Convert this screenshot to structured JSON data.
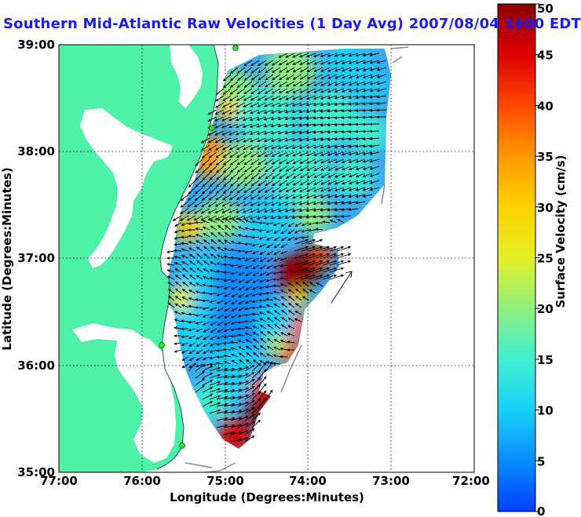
{
  "title": "Southern Mid-Atlantic Raw Velocities (1 Day Avg) 2007/08/04 1600 EDT",
  "x_axis": {
    "label": "Longitude (Degrees:Minutes)",
    "ticks": [
      "77:00",
      "76:00",
      "75:00",
      "74:00",
      "73:00",
      "72:00"
    ]
  },
  "y_axis": {
    "label": "Latitude (Degrees:Minutes)",
    "ticks": [
      "39:00",
      "38:00",
      "37:00",
      "36:00",
      "35:00"
    ]
  },
  "colorbar": {
    "label": "Surface Velocity (cm/s)",
    "ticks": [
      "50",
      "45",
      "40",
      "35",
      "30",
      "25",
      "20",
      "15",
      "10",
      "5",
      "0"
    ],
    "min": 0,
    "max": 50,
    "colors": [
      "#0040ff",
      "#0a8cff",
      "#19d0f8",
      "#40f0d0",
      "#8ff080",
      "#e4f028",
      "#ffd200",
      "#ff9a00",
      "#ff4800",
      "#dd0000",
      "#8a0000"
    ]
  },
  "colors": {
    "land": "#4ff0a8",
    "water": "#ffffff",
    "station": "#33dd33",
    "arrow": "#000000"
  },
  "chart_data": {
    "type": "map",
    "extent_longitude": [
      "77:00",
      "72:00"
    ],
    "extent_latitude": [
      "35:00",
      "39:00"
    ],
    "grid": true,
    "colorbar_position": "right",
    "velocity_range_cm_s": [
      0,
      50
    ],
    "high_velocity_regions": [
      {
        "area": "east of 74:00, near 36:50",
        "speed_cm_s": 50
      },
      {
        "area": "near 74:40, 35:20",
        "speed_cm_s": 50
      },
      {
        "area": "near 74:10, 36:15",
        "speed_cm_s": 45
      },
      {
        "area": "near 75:20, 37:50 coastal",
        "speed_cm_s": 35
      }
    ],
    "low_velocity_region": {
      "area": "around 75:00, 36:40",
      "speed_cm_s": 5
    }
  }
}
